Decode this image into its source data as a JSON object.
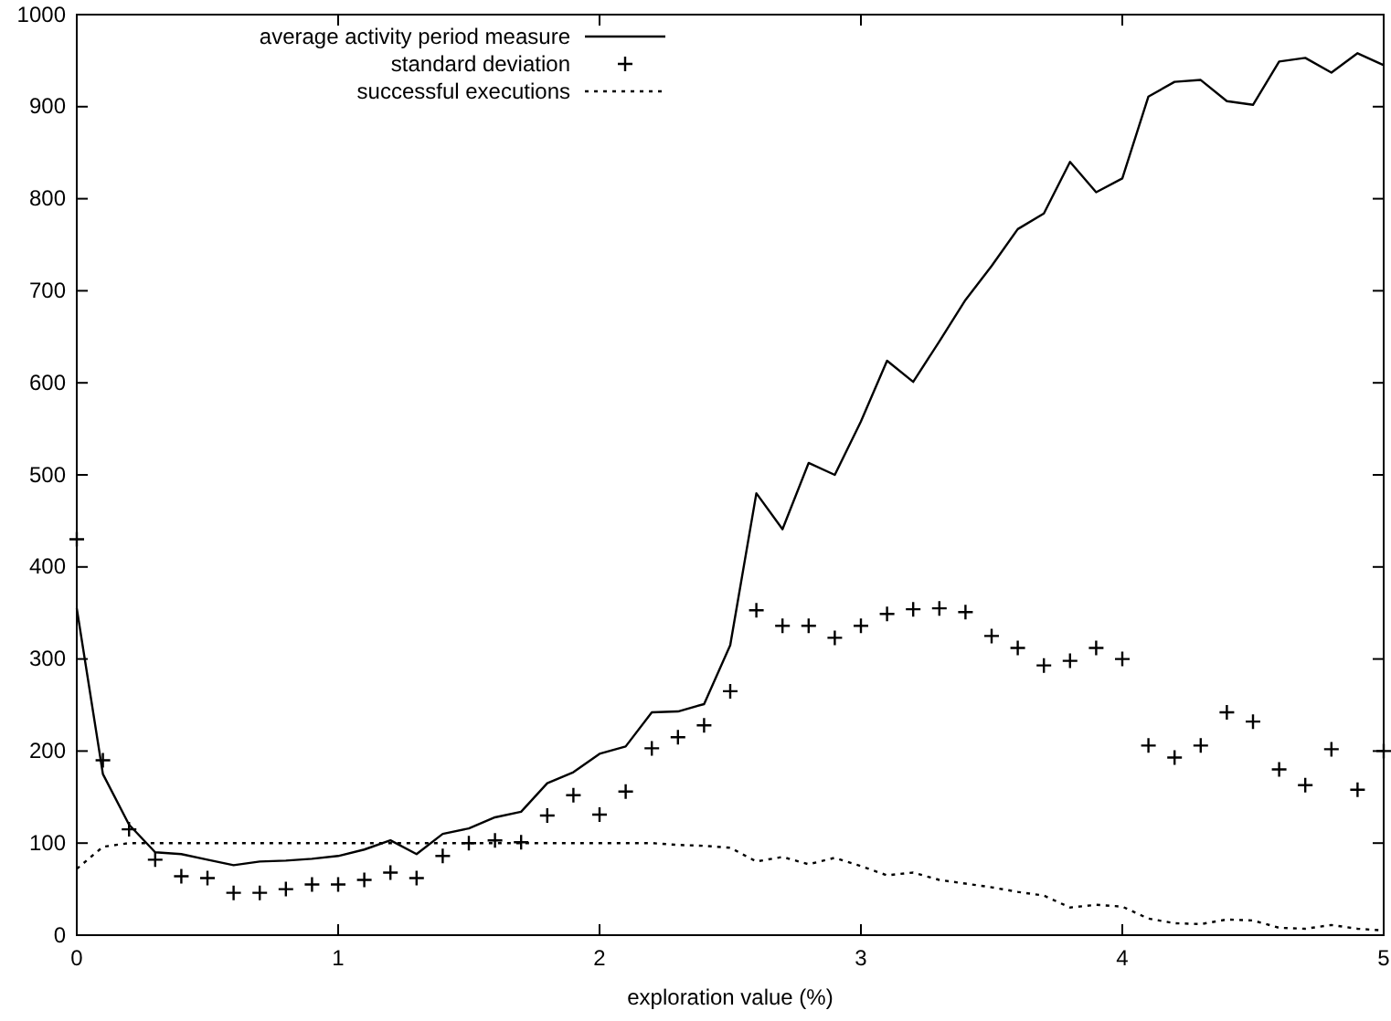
{
  "chart_data": {
    "type": "line",
    "xlabel": "exploration value (%)",
    "x": [
      0,
      0.1,
      0.2,
      0.3,
      0.4,
      0.5,
      0.6,
      0.7,
      0.8,
      0.9,
      1,
      1.1,
      1.2,
      1.3,
      1.4,
      1.5,
      1.6,
      1.7,
      1.8,
      1.9,
      2,
      2.1,
      2.2,
      2.3,
      2.4,
      2.5,
      2.6,
      2.7,
      2.8,
      2.9,
      3,
      3.1,
      3.2,
      3.3,
      3.4,
      3.5,
      3.6,
      3.7,
      3.8,
      3.9,
      4,
      4.1,
      4.2,
      4.3,
      4.4,
      4.5,
      4.6,
      4.7,
      4.8,
      4.9,
      5
    ],
    "series": [
      {
        "name": "average activity period measure",
        "color": "#000000",
        "line_style": "solid",
        "values": [
          355,
          175,
          120,
          90,
          88,
          82,
          76,
          80,
          81,
          83,
          86,
          93,
          103,
          88,
          110,
          116,
          128,
          134,
          165,
          177,
          197,
          205,
          242,
          243,
          251,
          315,
          480,
          441,
          513,
          500,
          558,
          624,
          601,
          645,
          690,
          727,
          767,
          784,
          840,
          807,
          822,
          911,
          927,
          929,
          906,
          902,
          949,
          953,
          937,
          958,
          945
        ]
      },
      {
        "name": "standard deviation",
        "color": "#000000",
        "type": "scatter",
        "marker": "cross",
        "values": [
          430,
          190,
          115,
          82,
          64,
          62,
          46,
          46,
          50,
          55,
          55,
          60,
          68,
          62,
          86,
          100,
          103,
          101,
          130,
          152,
          131,
          156,
          203,
          215,
          228,
          265,
          353,
          336,
          336,
          323,
          336,
          349,
          354,
          355,
          351,
          325,
          312,
          293,
          298,
          312,
          300,
          206,
          193,
          206,
          242,
          232,
          180,
          163,
          202,
          158,
          200
        ]
      },
      {
        "name": "successful executions",
        "color": "#000000",
        "line_style": "dotted",
        "values": [
          72,
          96,
          100,
          100,
          100,
          100,
          100,
          100,
          100,
          100,
          100,
          100,
          100,
          100,
          100,
          100,
          100,
          100,
          100,
          100,
          100,
          100,
          100,
          98,
          97,
          95,
          80,
          85,
          77,
          84,
          75,
          65,
          68,
          60,
          56,
          52,
          47,
          43,
          30,
          33,
          31,
          18,
          13,
          12,
          17,
          16,
          8,
          7,
          11,
          7,
          5
        ]
      }
    ],
    "xlim": [
      0,
      5
    ],
    "xticks": [
      0,
      1,
      2,
      3,
      4,
      5
    ],
    "ylim": [
      0,
      1000
    ],
    "yticks": [
      0,
      100,
      200,
      300,
      400,
      500,
      600,
      700,
      800,
      900,
      1000
    ],
    "grid": false,
    "legend": "top left"
  }
}
